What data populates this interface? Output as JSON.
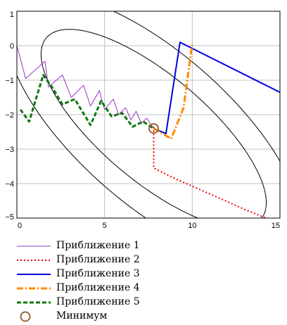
{
  "chart_data": {
    "type": "line",
    "xlim": [
      0,
      15
    ],
    "ylim": [
      -5,
      1
    ],
    "x_ticks": [
      0,
      5,
      10,
      15
    ],
    "y_ticks": [
      1,
      0,
      -1,
      -2,
      -3,
      -4,
      -5
    ],
    "grid": true,
    "legend_position": "bottom",
    "ellipses": [
      {
        "center": [
          7.8,
          -2.4
        ],
        "semi_major": 6.8,
        "semi_minor": 1.8,
        "angle_deg": -20
      },
      {
        "center": [
          7.8,
          -2.4
        ],
        "semi_major": 8.9,
        "semi_minor": 2.6,
        "angle_deg": -20
      }
    ],
    "series": [
      {
        "name": "Приближение 1",
        "color": "#9933cc",
        "style": "solid",
        "points": [
          [
            0,
            0
          ],
          [
            0.5,
            -0.95
          ],
          [
            1.6,
            -0.45
          ],
          [
            1.8,
            -1.2
          ],
          [
            2.6,
            -0.85
          ],
          [
            3.1,
            -1.5
          ],
          [
            3.8,
            -1.15
          ],
          [
            4.2,
            -1.75
          ],
          [
            4.7,
            -1.3
          ],
          [
            5.0,
            -1.85
          ],
          [
            5.5,
            -1.55
          ],
          [
            5.8,
            -2.0
          ],
          [
            6.2,
            -1.8
          ],
          [
            6.5,
            -2.15
          ],
          [
            6.8,
            -1.9
          ],
          [
            7.1,
            -2.25
          ],
          [
            7.4,
            -2.1
          ],
          [
            7.8,
            -2.4
          ]
        ]
      },
      {
        "name": "Приближение 2",
        "color": "#ee0000",
        "style": "dotted",
        "points": [
          [
            7.8,
            -2.35
          ],
          [
            7.8,
            -3.55
          ],
          [
            9.0,
            -3.85
          ],
          [
            11.0,
            -4.3
          ],
          [
            13.0,
            -4.75
          ],
          [
            14.2,
            -5.0
          ]
        ]
      },
      {
        "name": "Приближение 3",
        "color": "#0000dd",
        "style": "solid",
        "points": [
          [
            7.8,
            -2.4
          ],
          [
            8.5,
            -2.55
          ],
          [
            9.3,
            0.1
          ],
          [
            15,
            -1.35
          ]
        ]
      },
      {
        "name": "Приближение 4",
        "color": "#ff8800",
        "style": "dashdot",
        "points": [
          [
            7.8,
            -2.4
          ],
          [
            8.8,
            -2.7
          ],
          [
            9.5,
            -1.8
          ],
          [
            10.0,
            0.05
          ]
        ]
      },
      {
        "name": "Приближение 5",
        "color": "#117711",
        "style": "dashed",
        "points": [
          [
            0.2,
            -1.85
          ],
          [
            0.7,
            -2.2
          ],
          [
            1.5,
            -0.85
          ],
          [
            2.0,
            -1.2
          ],
          [
            2.6,
            -1.7
          ],
          [
            3.3,
            -1.55
          ],
          [
            4.2,
            -2.3
          ],
          [
            4.8,
            -1.6
          ],
          [
            5.4,
            -2.05
          ],
          [
            6.0,
            -1.95
          ],
          [
            6.6,
            -2.35
          ],
          [
            7.2,
            -2.2
          ],
          [
            7.8,
            -2.4
          ]
        ]
      },
      {
        "name": "Минимум",
        "color": "#996633",
        "style": "marker",
        "points": [
          [
            7.8,
            -2.4
          ]
        ]
      }
    ]
  }
}
